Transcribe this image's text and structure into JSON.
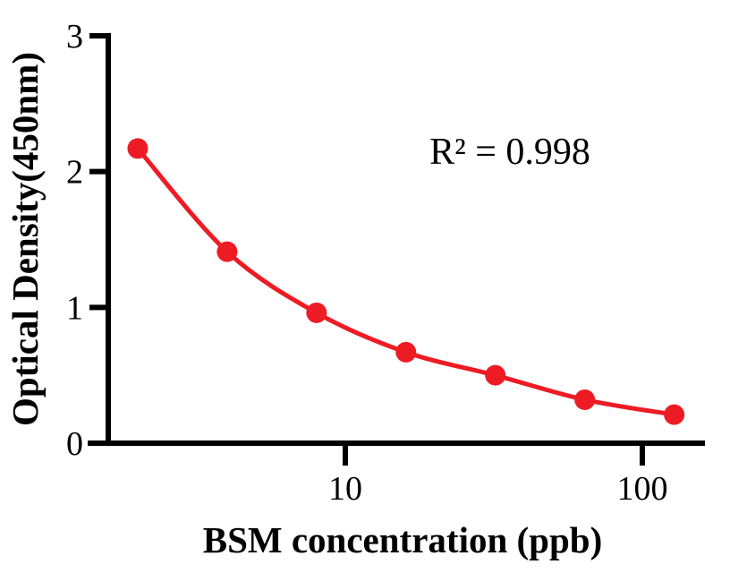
{
  "figure": {
    "kind": "ELISA standard curve plot"
  },
  "chart_data": {
    "type": "scatter",
    "title": "",
    "xlabel": "BSM concentration (ppb)",
    "ylabel": "Optical Density(450nm)",
    "annotation": "R² = 0.998",
    "r_squared": 0.998,
    "x_scale": "log10",
    "x": [
      2,
      4,
      8,
      16,
      32,
      64,
      128
    ],
    "y": [
      2.17,
      1.41,
      0.96,
      0.67,
      0.5,
      0.32,
      0.21
    ],
    "x_ticks": [
      10,
      100
    ],
    "y_ticks": [
      0,
      1,
      2,
      3
    ],
    "xlim": [
      1.55,
      165
    ],
    "ylim": [
      0,
      3
    ],
    "grid": false,
    "legend": false,
    "fit": "smooth decreasing fit curve through all points",
    "colors": {
      "marker": "#ED1C24",
      "line": "#ED1C24",
      "axis": "#000000",
      "text": "#000000",
      "background": "#ffffff"
    }
  }
}
